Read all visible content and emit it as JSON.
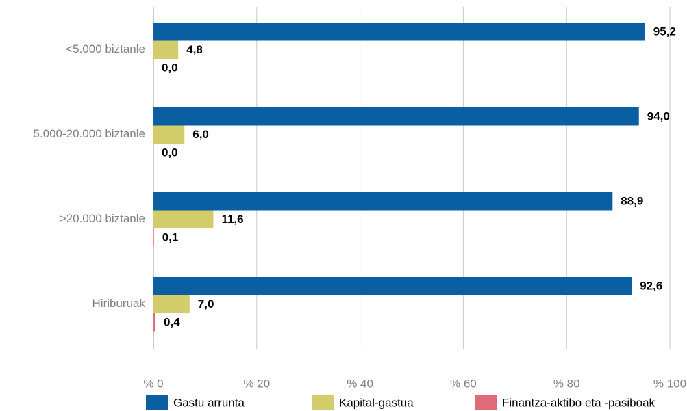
{
  "chart_data": {
    "type": "bar",
    "orientation": "horizontal",
    "categories": [
      "<5.000 biztanle",
      "5.000-20.000 biztanle",
      ">20.000 biztanle",
      "Hiriburuak"
    ],
    "series": [
      {
        "name": "Gastu arrunta",
        "color": "#0a5fa3",
        "values": [
          95.2,
          94.0,
          88.9,
          92.6
        ],
        "value_labels": [
          "95,2",
          "94,0",
          "88,9",
          "92,6"
        ]
      },
      {
        "name": "Kapital-gastua",
        "color": "#d3cc6a",
        "values": [
          4.8,
          6.0,
          11.6,
          7.0
        ],
        "value_labels": [
          "4,8",
          "6,0",
          "11,6",
          "7,0"
        ]
      },
      {
        "name": "Finantza-aktibo eta -pasiboak",
        "color": "#e06a78",
        "values": [
          0.0,
          0.0,
          0.1,
          0.4
        ],
        "value_labels": [
          "0,0",
          "0,0",
          "0,1",
          "0,4"
        ]
      }
    ],
    "xlim": [
      0,
      100
    ],
    "xticks": [
      {
        "value": 0,
        "label": "% 0"
      },
      {
        "value": 20,
        "label": "% 20"
      },
      {
        "value": 40,
        "label": "% 40"
      },
      {
        "value": 60,
        "label": "% 60"
      },
      {
        "value": 80,
        "label": "% 80"
      },
      {
        "value": 100,
        "label": "% 100"
      }
    ],
    "grid": true,
    "legend": "bottom"
  }
}
